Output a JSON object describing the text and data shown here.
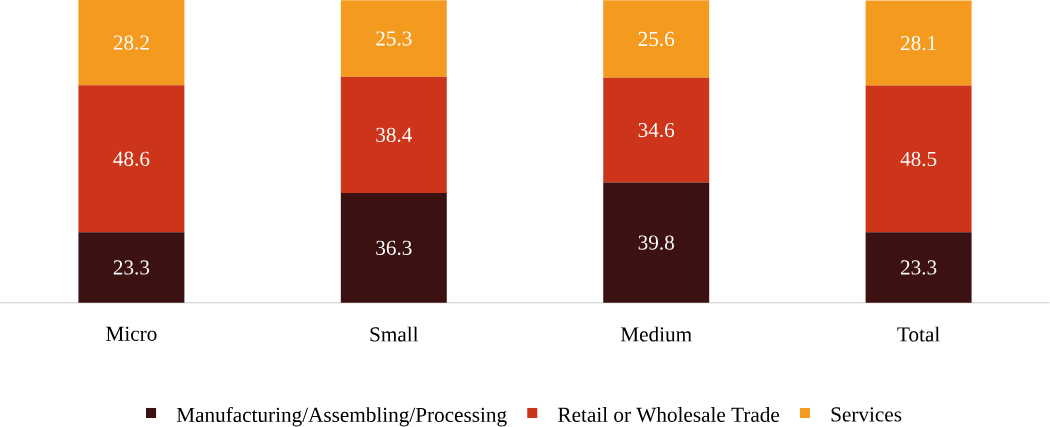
{
  "chart_data": {
    "type": "bar",
    "stacked": true,
    "data_labels": true,
    "legend": "bottom",
    "categories": [
      "Micro",
      "Small",
      "Medium",
      "Total"
    ],
    "series": [
      {
        "name": "Manufacturing/Assembling/Processing",
        "color": "#3b1112",
        "values": [
          23.3,
          36.3,
          39.8,
          23.3
        ]
      },
      {
        "name": "Retail or Wholesale Trade",
        "color": "#cc3519",
        "values": [
          48.6,
          38.4,
          34.6,
          48.5
        ]
      },
      {
        "name": "Services",
        "color": "#f39a1f",
        "values": [
          28.2,
          25.3,
          25.6,
          28.1
        ]
      }
    ]
  }
}
